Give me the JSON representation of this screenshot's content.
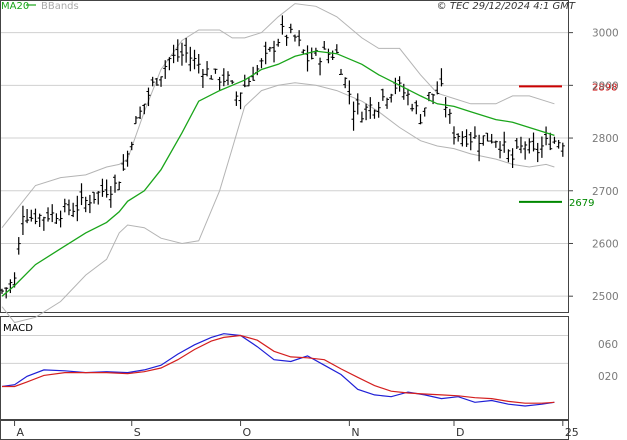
{
  "header": {
    "legend_ma": "MA20",
    "legend_bb": "BBands",
    "copyright": "© TEC 29/12/2024 4:1 GMT"
  },
  "macd_panel": {
    "label": "MACD",
    "ticks": [
      "060",
      "020"
    ]
  },
  "colors": {
    "ma": "#1aa51a",
    "bands": "#b4b4b4",
    "candle": "#000000",
    "resistance": "#cc0000",
    "support": "#008800",
    "macd_line": "#1f1fd6",
    "signal_line": "#d41f1f",
    "grid": "#d0d0d0"
  },
  "chart_data": [
    {
      "type": "candlestick",
      "price_ticks": [
        "3000",
        "2900",
        "2800",
        "2700",
        "2600",
        "2500"
      ],
      "price_tick_values": [
        3000,
        2900,
        2800,
        2700,
        2600,
        2500
      ],
      "ylim": [
        2470,
        3060
      ],
      "x_tick_labels": [
        "A",
        "S",
        "O",
        "N",
        "D",
        "25"
      ],
      "x_tick_index": [
        3,
        31,
        57,
        83,
        108,
        134
      ],
      "n_bars": 136,
      "resistance": {
        "value": 2898,
        "label": "2898"
      },
      "support": {
        "value": 2679,
        "label": "2679"
      },
      "series": [
        {
          "name": "MA20",
          "kind": "moving_average"
        },
        {
          "name": "BBands",
          "kind": "bollinger"
        }
      ],
      "price_path_index": [
        0,
        3,
        5,
        7,
        12,
        18,
        24,
        27,
        29,
        32,
        36,
        40,
        44,
        47,
        50,
        54,
        56,
        60,
        63,
        67,
        70,
        73,
        77,
        80,
        84,
        86,
        90,
        94,
        97,
        100,
        102,
        105,
        108,
        112,
        115,
        118,
        122,
        125,
        127,
        130,
        132
      ],
      "price_path_close": [
        2510,
        2530,
        2660,
        2650,
        2655,
        2670,
        2700,
        2710,
        2740,
        2830,
        2900,
        2950,
        2960,
        2940,
        2920,
        2910,
        2880,
        2920,
        2950,
        3000,
        2990,
        2950,
        2960,
        2960,
        2860,
        2850,
        2870,
        2900,
        2880,
        2840,
        2880,
        2890,
        2810,
        2800,
        2800,
        2800,
        2760,
        2790,
        2770,
        2790,
        2795
      ],
      "band_path_index": [
        0,
        3,
        8,
        14,
        20,
        25,
        28,
        30,
        34,
        38,
        43,
        47,
        52,
        55,
        58,
        62,
        66,
        70,
        75,
        80,
        86,
        90,
        95,
        100,
        104,
        108,
        112,
        118,
        122,
        126,
        130,
        132
      ],
      "upper_band": [
        2630,
        2660,
        2710,
        2725,
        2730,
        2745,
        2750,
        2760,
        2850,
        2930,
        2985,
        3005,
        3005,
        2990,
        2990,
        3000,
        3030,
        3055,
        3050,
        3030,
        2990,
        2970,
        2970,
        2920,
        2885,
        2875,
        2865,
        2865,
        2880,
        2880,
        2870,
        2865
      ],
      "lower_band": [
        2480,
        2450,
        2460,
        2490,
        2540,
        2570,
        2620,
        2635,
        2630,
        2610,
        2600,
        2605,
        2700,
        2780,
        2860,
        2890,
        2900,
        2905,
        2900,
        2890,
        2870,
        2850,
        2820,
        2795,
        2785,
        2780,
        2770,
        2760,
        2750,
        2745,
        2750,
        2745
      ],
      "ma20": [
        2500,
        2520,
        2560,
        2590,
        2620,
        2640,
        2660,
        2680,
        2700,
        2740,
        2810,
        2870,
        2890,
        2900,
        2910,
        2930,
        2940,
        2955,
        2965,
        2960,
        2940,
        2920,
        2900,
        2880,
        2865,
        2860,
        2850,
        2835,
        2830,
        2820,
        2810,
        2805
      ]
    },
    {
      "type": "line",
      "label": "MACD",
      "x_index": [
        0,
        3,
        6,
        10,
        15,
        20,
        25,
        30,
        34,
        38,
        42,
        46,
        50,
        53,
        57,
        61,
        65,
        69,
        73,
        77,
        81,
        85,
        89,
        93,
        97,
        101,
        105,
        109,
        113,
        117,
        121,
        125,
        129,
        132
      ],
      "series": [
        {
          "name": "MACD",
          "values": [
            -5,
            -3,
            6,
            13,
            12,
            10,
            11,
            10,
            13,
            18,
            30,
            40,
            48,
            52,
            50,
            38,
            24,
            22,
            28,
            18,
            8,
            -8,
            -14,
            -16,
            -11,
            -14,
            -18,
            -16,
            -22,
            -20,
            -24,
            -26,
            -24,
            -22
          ]
        },
        {
          "name": "Signal",
          "values": [
            -5,
            -5,
            0,
            7,
            10,
            10,
            10,
            9,
            11,
            15,
            24,
            35,
            44,
            48,
            50,
            45,
            33,
            27,
            26,
            24,
            14,
            5,
            -4,
            -10,
            -12,
            -13,
            -14,
            -15,
            -17,
            -18,
            -21,
            -23,
            -23,
            -22
          ]
        }
      ]
    }
  ]
}
